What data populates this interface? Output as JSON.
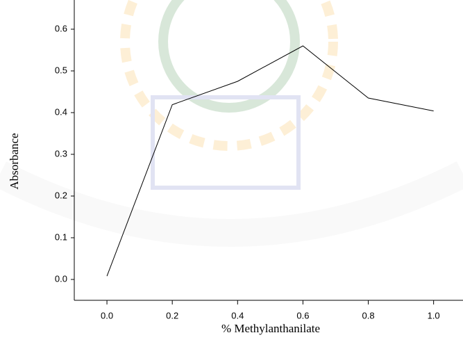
{
  "chart_data": {
    "type": "line",
    "x_label": "% Methylanthanilate",
    "y_label": "Absorbance",
    "x": [
      0.0,
      0.2,
      0.4,
      0.6,
      0.8,
      1.0
    ],
    "series": [
      {
        "name": "Absorbance",
        "color": "#000000",
        "values": [
          0.008,
          0.419,
          0.475,
          0.56,
          0.435,
          0.404
        ]
      }
    ],
    "xlim": [
      -0.1,
      1.09
    ],
    "ylim": [
      -0.05,
      0.67
    ],
    "xticks": [
      {
        "value": 0,
        "label": "0.0"
      },
      0.2,
      0.4,
      0.6,
      0.8,
      {
        "value": 1,
        "label": "1.0"
      }
    ],
    "yticks": [
      {
        "value": 0,
        "label": "0.0"
      },
      0.1,
      0.2,
      0.3,
      0.4,
      0.5,
      0.6
    ],
    "grid": false
  }
}
